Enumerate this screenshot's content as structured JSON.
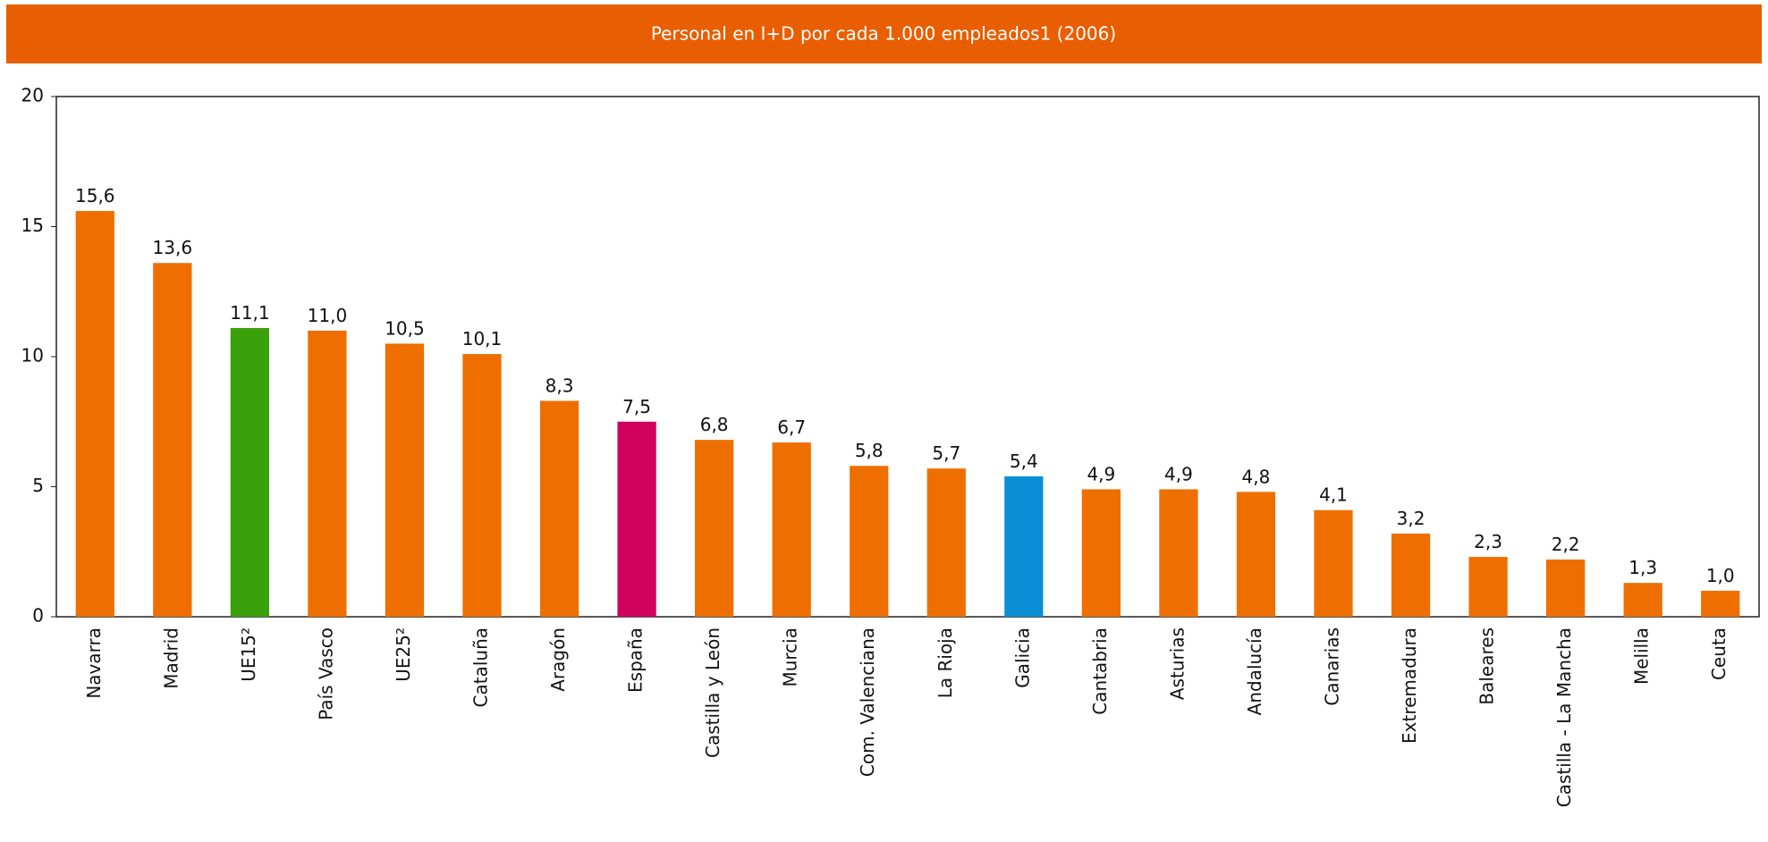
{
  "chart_data": {
    "type": "bar",
    "title": "Personal en I+D por cada 1.000 empleados1 (2006)",
    "categories": [
      "Navarra",
      "Madrid",
      "UE15²",
      "País Vasco",
      "UE25²",
      "Cataluña",
      "Aragón",
      "España",
      "Castilla y León",
      "Murcia",
      "Com. Valenciana",
      "La Rioja",
      "Galicia",
      "Cantabria",
      "Asturias",
      "Andalucía",
      "Canarias",
      "Extremadura",
      "Baleares",
      "Castilla - La Mancha",
      "Melilla",
      "Ceuta"
    ],
    "values": [
      15.6,
      13.6,
      11.1,
      11.0,
      10.5,
      10.1,
      8.3,
      7.5,
      6.8,
      6.7,
      5.8,
      5.7,
      5.4,
      4.9,
      4.9,
      4.8,
      4.1,
      3.2,
      2.3,
      2.2,
      1.3,
      1.0
    ],
    "value_labels": [
      "15,6",
      "13,6",
      "11,1",
      "11,0",
      "10,5",
      "10,1",
      "8,3",
      "7,5",
      "6,8",
      "6,7",
      "5,8",
      "5,7",
      "5,4",
      "4,9",
      "4,9",
      "4,8",
      "4,1",
      "3,2",
      "2,3",
      "2,2",
      "1,3",
      "1,0"
    ],
    "colors": [
      "#ee6f00",
      "#ee6f00",
      "#3aa10a",
      "#ee6f00",
      "#ee6f00",
      "#ee6f00",
      "#ee6f00",
      "#d0005e",
      "#ee6f00",
      "#ee6f00",
      "#ee6f00",
      "#ee6f00",
      "#0a8fd6",
      "#ee6f00",
      "#ee6f00",
      "#ee6f00",
      "#ee6f00",
      "#ee6f00",
      "#ee6f00",
      "#ee6f00",
      "#ee6f00",
      "#ee6f00"
    ],
    "ylim": [
      0,
      20
    ],
    "yticks": [
      0,
      5,
      10,
      15,
      20
    ],
    "grid": false
  }
}
